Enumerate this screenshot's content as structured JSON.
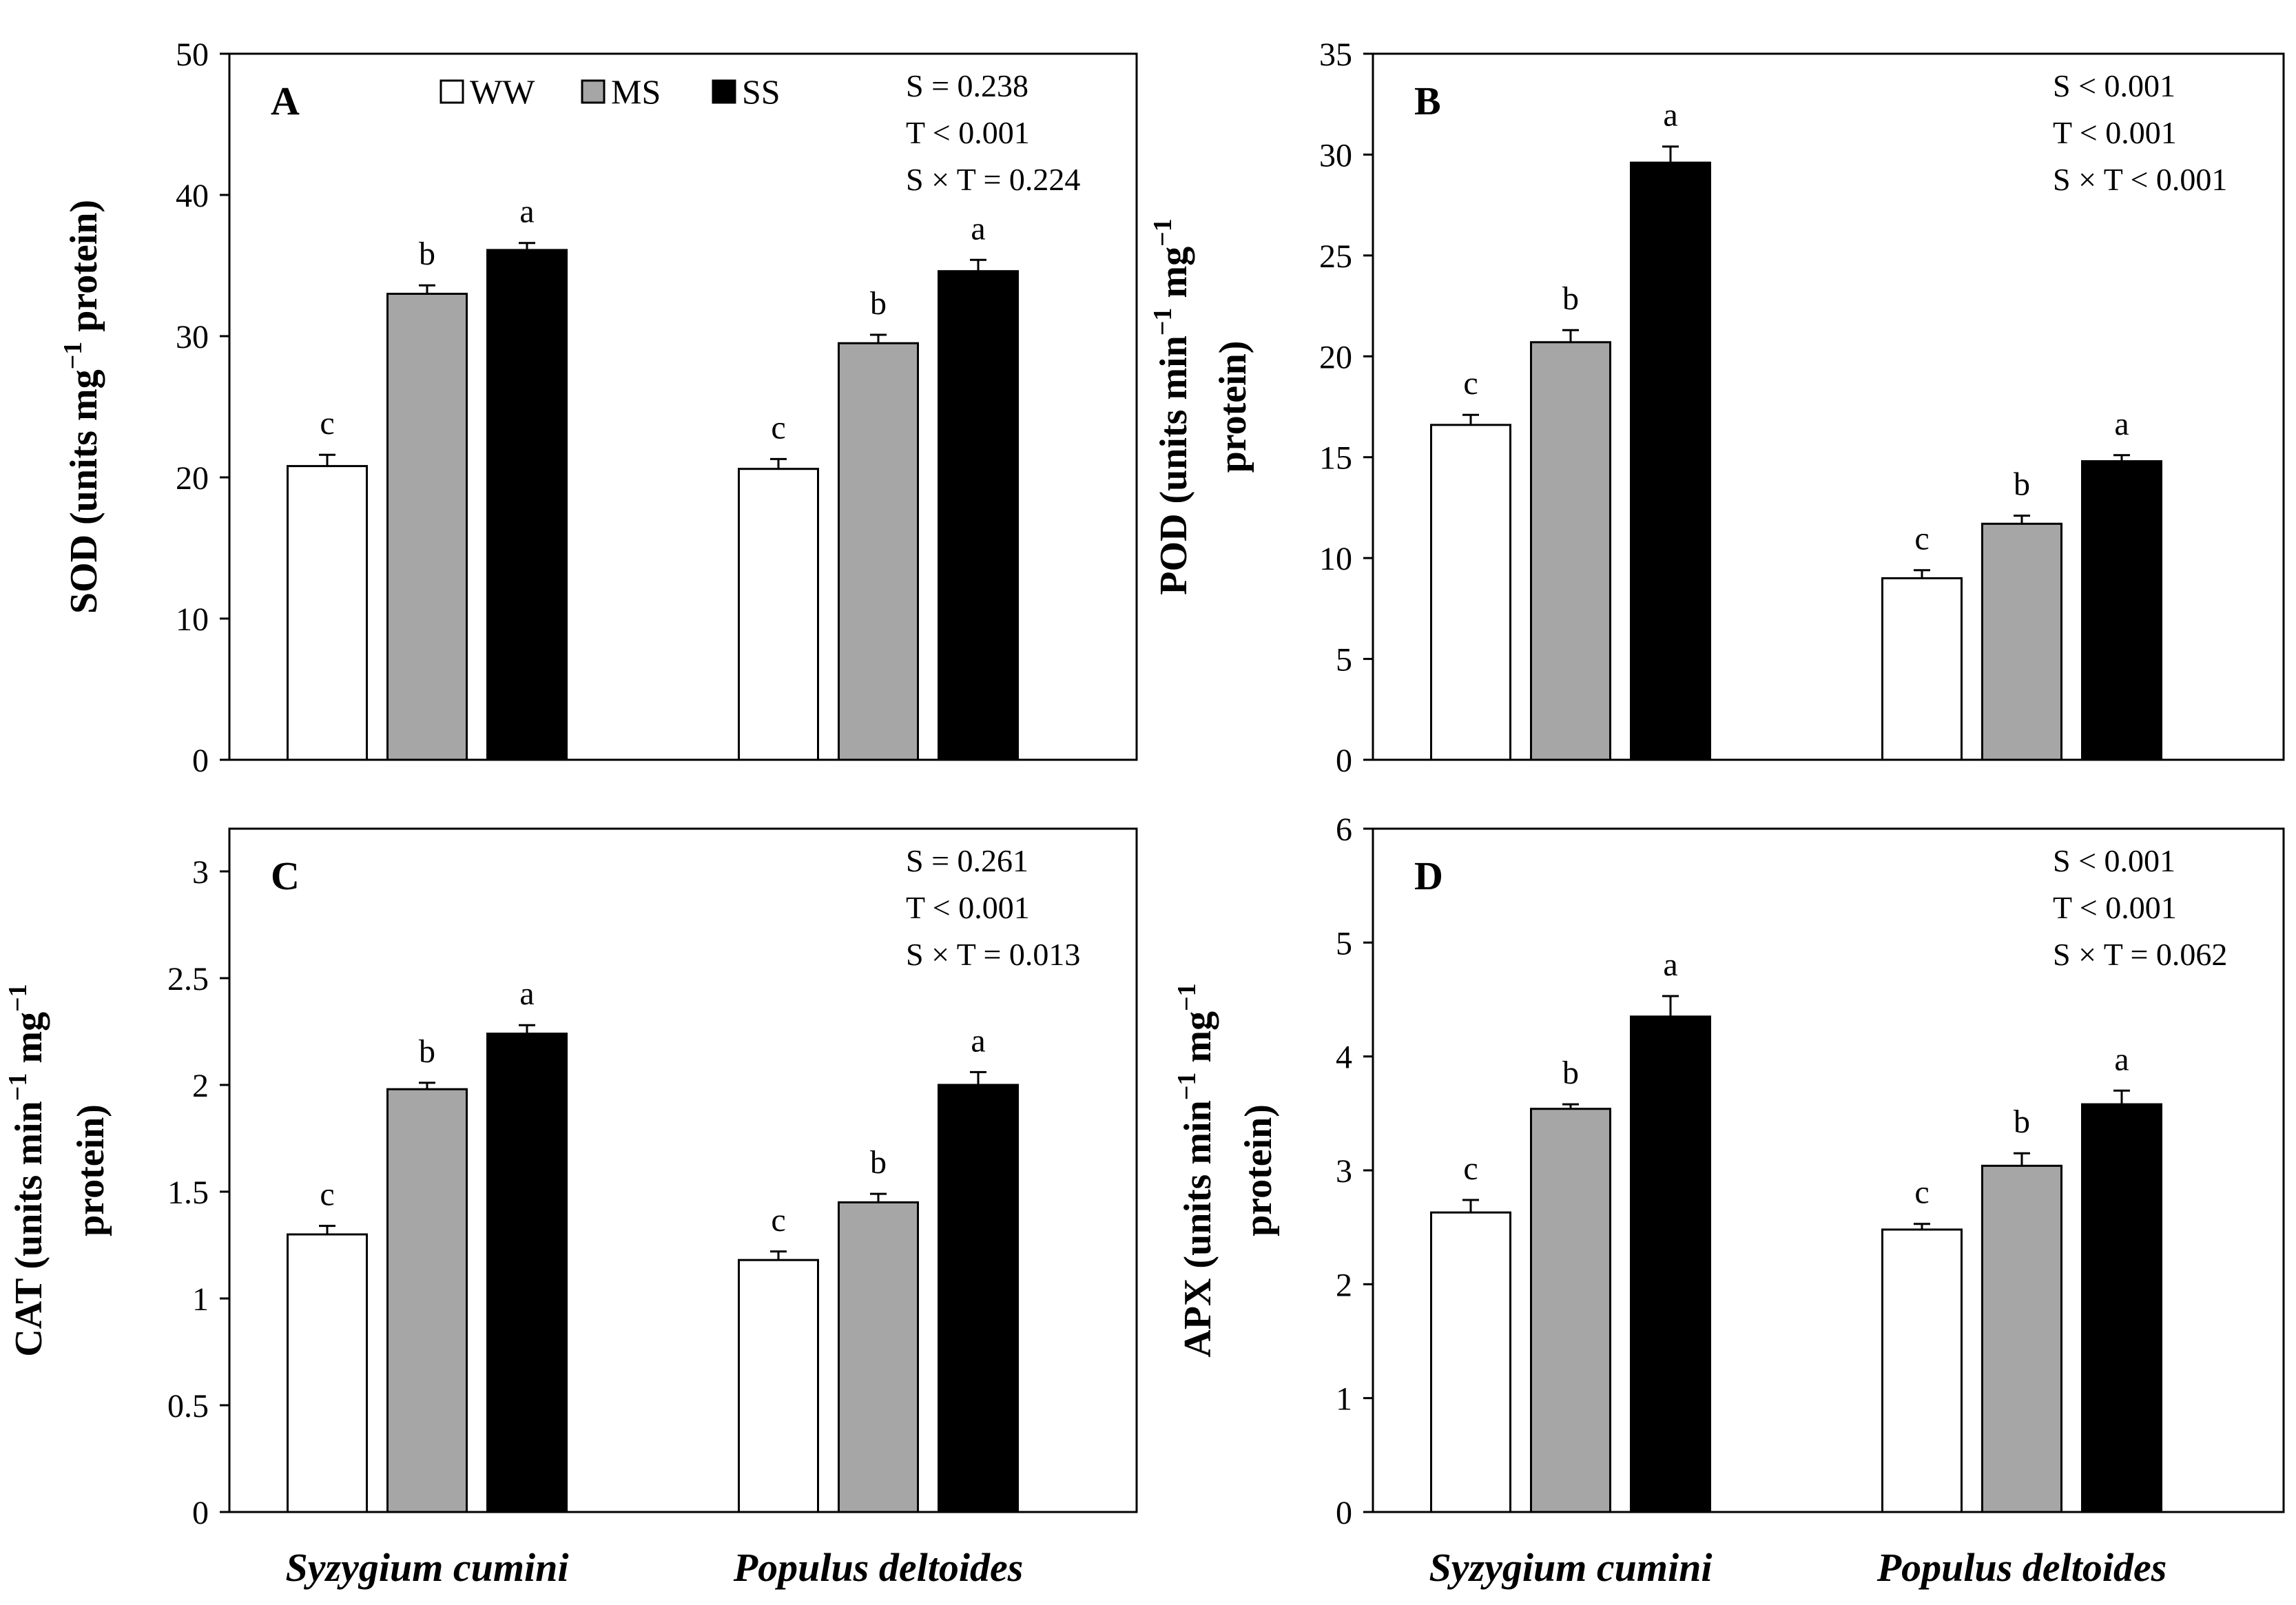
{
  "legend": [
    {
      "name": "WW",
      "color": "#ffffff"
    },
    {
      "name": "MS",
      "color": "#a6a6a6"
    },
    {
      "name": "SS",
      "color": "#000000"
    }
  ],
  "chart_data": [
    {
      "type": "bar",
      "panel": "A",
      "categories": [
        "Syzygium cumini",
        "Populus deltoides"
      ],
      "ylabel_line1": "SOD (units mg",
      "ylabel_sup": "−1",
      "ylabel_line1_end": " protein)",
      "ylim": [
        0,
        50
      ],
      "yticks": [
        0,
        10,
        20,
        30,
        40,
        50
      ],
      "ytick_labels": [
        "0",
        "10",
        "20",
        "30",
        "40",
        "50"
      ],
      "stats": [
        "S = 0.238",
        "T < 0.001",
        "S × T = 0.224"
      ],
      "series": [
        {
          "name": "WW",
          "values": [
            20.8,
            20.6
          ],
          "errors": [
            0.8,
            0.7
          ],
          "letters": [
            "c",
            "c"
          ]
        },
        {
          "name": "MS",
          "values": [
            33.0,
            29.5
          ],
          "errors": [
            0.6,
            0.6
          ],
          "letters": [
            "b",
            "b"
          ]
        },
        {
          "name": "SS",
          "values": [
            36.1,
            34.6
          ],
          "errors": [
            0.5,
            0.8
          ],
          "letters": [
            "a",
            "a"
          ]
        }
      ]
    },
    {
      "type": "bar",
      "panel": "B",
      "categories": [
        "Syzygium cumini",
        "Populus deltoides"
      ],
      "ylabel_line1": "POD (units min",
      "ylabel_sup": "−1",
      "ylabel_sup2": "−1",
      "ylabel_line1_end": "  mg",
      "ylabel_line2": "protein)",
      "ylim": [
        0,
        35
      ],
      "yticks": [
        0,
        5,
        10,
        15,
        20,
        25,
        30,
        35
      ],
      "ytick_labels": [
        "0",
        "5",
        "10",
        "15",
        "20",
        "25",
        "30",
        "35"
      ],
      "stats": [
        "S < 0.001",
        "T < 0.001",
        "S × T < 0.001"
      ],
      "series": [
        {
          "name": "WW",
          "values": [
            16.6,
            9.0
          ],
          "errors": [
            0.5,
            0.4
          ],
          "letters": [
            "c",
            "c"
          ]
        },
        {
          "name": "MS",
          "values": [
            20.7,
            11.7
          ],
          "errors": [
            0.6,
            0.4
          ],
          "letters": [
            "b",
            "b"
          ]
        },
        {
          "name": "SS",
          "values": [
            29.6,
            14.8
          ],
          "errors": [
            0.8,
            0.3
          ],
          "letters": [
            "a",
            "a"
          ]
        }
      ]
    },
    {
      "type": "bar",
      "panel": "C",
      "categories": [
        "Syzygium cumini",
        "Populus deltoides"
      ],
      "ylabel_line1": "CAT (units min",
      "ylabel_sup": "−1",
      "ylabel_sup2": "−1",
      "ylabel_line1_end": "  mg",
      "ylabel_line2": "protein)",
      "ylim": [
        0,
        3.2
      ],
      "yticks": [
        0,
        0.5,
        1,
        1.5,
        2,
        2.5,
        3
      ],
      "ytick_labels": [
        "0",
        "0.5",
        "1",
        "1.5",
        "2",
        "2.5",
        "3"
      ],
      "stats": [
        "S = 0.261",
        "T < 0.001",
        "S × T = 0.013"
      ],
      "series": [
        {
          "name": "WW",
          "values": [
            1.3,
            1.18
          ],
          "errors": [
            0.04,
            0.04
          ],
          "letters": [
            "c",
            "c"
          ]
        },
        {
          "name": "MS",
          "values": [
            1.98,
            1.45
          ],
          "errors": [
            0.03,
            0.04
          ],
          "letters": [
            "b",
            "b"
          ]
        },
        {
          "name": "SS",
          "values": [
            2.24,
            2.0
          ],
          "errors": [
            0.04,
            0.06
          ],
          "letters": [
            "a",
            "a"
          ]
        }
      ]
    },
    {
      "type": "bar",
      "panel": "D",
      "categories": [
        "Syzygium cumini",
        "Populus deltoides"
      ],
      "ylabel_line1": "APX (units min",
      "ylabel_sup": "−1",
      "ylabel_sup2": "−1",
      "ylabel_line1_end": "  mg",
      "ylabel_line2": "protein)",
      "ylim": [
        0,
        6
      ],
      "yticks": [
        0,
        1,
        2,
        3,
        4,
        5,
        6
      ],
      "ytick_labels": [
        "0",
        "1",
        "2",
        "3",
        "4",
        "5",
        "6"
      ],
      "stats": [
        "S < 0.001",
        "T < 0.001",
        "S × T = 0.062"
      ],
      "series": [
        {
          "name": "WW",
          "values": [
            2.63,
            2.48
          ],
          "errors": [
            0.11,
            0.05
          ],
          "letters": [
            "c",
            "c"
          ]
        },
        {
          "name": "MS",
          "values": [
            3.54,
            3.04
          ],
          "errors": [
            0.04,
            0.11
          ],
          "letters": [
            "b",
            "b"
          ]
        },
        {
          "name": "SS",
          "values": [
            4.35,
            3.58
          ],
          "errors": [
            0.18,
            0.12
          ],
          "letters": [
            "a",
            "a"
          ]
        }
      ]
    }
  ]
}
